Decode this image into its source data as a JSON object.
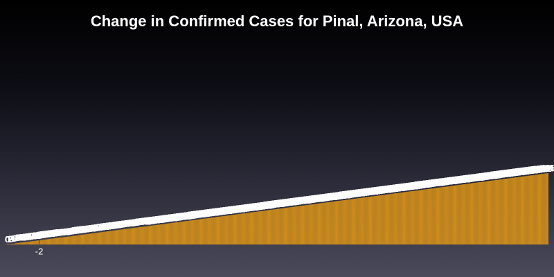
{
  "chart_data": {
    "type": "bar",
    "title": "Change in Confirmed Cases for Pinal, Arizona, USA",
    "xlabel": "",
    "ylabel": "",
    "ylim": [
      -35,
      1050
    ],
    "bar_color": "#d4901a",
    "grid": false,
    "legend": "none",
    "values": [
      0,
      0,
      1,
      1,
      2,
      2,
      3,
      3,
      4,
      4,
      5,
      5,
      6,
      7,
      7,
      8,
      9,
      9,
      10,
      10,
      11,
      11,
      11,
      12,
      12,
      12,
      13,
      13,
      14,
      14,
      15,
      15,
      16,
      16,
      17,
      17,
      18,
      18,
      19,
      19,
      20,
      20,
      21,
      21,
      22,
      22,
      23,
      23,
      -2,
      24,
      24,
      25,
      26,
      26,
      27,
      27,
      28,
      28,
      29,
      29,
      30,
      30,
      31,
      31,
      32,
      32,
      33,
      33,
      34,
      34,
      35,
      35,
      36,
      36,
      37,
      37,
      38,
      38,
      39,
      39,
      40,
      40,
      40,
      41,
      41,
      41,
      42,
      42,
      43,
      43,
      44,
      44,
      45,
      45,
      46,
      46,
      47,
      47,
      48,
      48,
      49,
      49,
      50,
      50,
      51,
      51,
      52,
      53,
      53,
      54,
      54,
      55,
      55,
      56,
      56,
      57,
      57,
      58,
      58,
      59,
      59,
      60,
      60,
      61,
      61,
      62,
      62,
      63,
      63,
      64,
      64,
      65,
      65,
      66,
      66,
      67,
      67,
      68,
      68,
      69,
      69,
      70,
      70,
      71,
      71,
      72,
      72,
      73,
      73,
      74,
      74,
      75,
      75,
      76,
      76,
      77,
      77,
      78,
      78,
      79,
      79,
      80,
      80,
      81,
      81,
      82,
      82,
      83,
      83,
      84,
      84,
      85,
      85,
      86,
      86,
      87,
      87,
      88,
      88,
      89,
      89,
      90,
      90,
      91,
      91,
      92,
      92,
      93,
      93,
      94,
      94,
      95,
      95,
      96,
      96,
      97,
      97,
      98,
      98,
      99,
      99,
      100,
      100,
      100,
      101,
      101,
      102,
      102,
      103,
      103,
      104,
      104,
      105,
      105,
      106,
      106,
      107,
      107,
      108,
      108,
      109,
      109,
      110,
      110,
      111,
      111,
      112,
      112,
      113,
      113,
      114,
      114,
      115,
      115,
      116,
      116,
      117,
      117,
      118,
      118,
      119,
      119,
      120,
      120,
      121,
      121,
      122,
      122,
      123,
      123,
      124,
      124,
      125,
      125,
      126,
      126,
      127,
      127,
      128,
      128,
      129,
      129,
      130,
      130,
      131,
      131,
      132,
      132,
      133,
      133,
      134,
      134,
      135,
      135,
      136,
      136,
      137,
      137,
      138,
      138,
      139,
      139,
      140,
      140,
      141,
      141,
      142,
      142,
      143,
      143,
      144,
      144,
      145,
      145,
      146,
      146,
      147,
      147,
      148,
      148,
      149,
      149,
      150,
      150,
      151,
      151,
      152,
      152,
      153,
      153,
      154,
      154,
      155,
      155,
      156,
      156,
      157,
      157,
      158,
      158,
      159,
      159,
      160,
      160,
      161,
      161,
      162,
      162,
      163,
      163,
      164,
      164,
      165,
      165,
      166,
      166,
      167,
      167,
      168,
      168,
      169,
      169,
      170,
      170,
      171,
      171,
      172,
      172,
      173,
      173,
      174,
      174,
      175,
      175,
      176,
      176,
      177,
      177,
      178,
      178,
      179,
      179,
      180,
      180,
      181,
      181,
      182,
      182,
      183,
      183,
      184,
      184,
      185,
      185,
      186,
      186,
      187,
      187,
      188,
      188,
      189,
      189,
      190,
      190,
      191,
      191,
      192,
      192,
      193,
      193,
      194,
      194,
      195,
      195,
      196,
      196,
      197,
      197,
      198,
      198,
      199,
      199,
      200,
      200,
      201,
      201,
      202,
      202,
      203,
      203,
      204,
      204,
      205,
      205,
      206,
      206,
      207,
      207,
      208,
      208,
      209,
      209,
      210,
      210,
      211,
      211,
      212,
      212,
      213,
      213,
      214,
      214,
      215,
      215,
      216,
      216,
      217,
      217,
      218,
      218,
      219,
      219,
      220,
      220,
      221,
      221,
      222,
      222,
      223,
      223,
      224,
      224,
      225,
      225,
      226,
      226,
      227,
      227,
      228,
      228,
      229,
      229,
      230,
      230,
      231,
      231,
      232,
      232,
      233,
      233,
      234,
      234,
      235,
      235,
      236,
      236,
      237,
      237,
      238,
      238,
      239,
      239,
      240,
      240,
      241,
      241,
      242,
      242,
      243,
      243,
      244,
      244,
      245,
      245,
      246,
      246,
      247,
      247,
      248,
      248,
      249,
      249,
      250,
      250,
      251,
      251,
      252,
      252,
      253,
      253,
      254,
      254,
      255,
      255,
      256,
      256,
      257,
      257,
      258,
      258,
      259,
      259,
      260,
      260,
      261,
      261,
      262,
      262,
      263,
      263,
      264,
      264,
      265,
      265,
      266,
      266,
      267,
      267,
      268,
      268,
      269,
      269,
      270,
      270,
      271,
      271,
      272,
      272,
      273,
      273,
      274,
      274,
      275,
      275,
      276,
      276,
      277,
      277,
      278,
      278,
      279,
      279,
      280,
      280,
      281,
      281,
      282,
      282,
      283,
      283,
      284,
      284,
      285,
      285,
      286,
      286,
      287,
      287,
      288,
      288,
      289,
      289,
      290,
      290,
      291,
      291,
      292,
      292,
      293,
      293,
      294,
      294,
      295,
      295,
      296,
      296,
      297,
      297,
      298,
      298,
      299,
      299,
      300,
      300,
      301,
      301,
      302,
      302,
      303,
      303,
      304,
      304,
      305,
      305,
      306,
      306,
      307,
      307,
      308,
      308,
      309,
      309,
      310,
      310,
      311,
      311,
      312,
      312,
      313,
      313,
      314,
      314,
      315,
      315,
      316,
      316,
      317,
      317,
      318,
      318,
      319,
      319,
      320,
      320,
      321,
      321,
      322,
      322,
      323,
      323,
      324,
      324,
      325,
      325,
      326,
      326,
      327,
      327,
      328,
      328,
      329,
      329,
      330,
      330,
      331,
      331,
      332,
      332,
      333,
      333,
      334,
      334,
      335,
      335,
      336,
      336,
      337,
      337,
      338,
      338,
      339,
      339,
      340,
      340,
      341,
      341,
      342,
      342,
      343,
      343,
      344,
      344,
      345,
      345,
      346,
      346,
      347,
      347,
      348,
      348,
      349,
      349,
      350,
      350,
      351,
      351,
      352,
      352,
      353,
      353,
      354,
      354,
      355,
      355,
      356,
      356,
      357,
      357,
      358,
      358,
      359,
      359,
      360,
      360,
      361,
      361,
      362,
      362,
      363,
      363,
      364,
      364,
      365,
      365,
      366,
      366,
      367,
      367,
      368,
      368,
      369,
      369,
      370,
      370,
      371,
      371,
      372,
      372,
      373,
      373,
      374,
      374,
      375,
      375,
      376,
      376,
      377,
      377,
      378,
      378,
      379,
      379,
      380,
      380,
      381,
      381,
      382,
      382,
      383,
      383,
      384,
      384,
      385,
      385,
      386,
      386,
      387,
      387,
      388,
      388,
      389,
      389,
      390,
      390,
      391,
      391,
      392,
      392,
      393,
      393,
      394,
      394,
      395,
      395,
      396,
      396,
      397,
      397,
      398,
      398,
      399,
      399,
      400,
      400,
      401,
      401,
      402,
      402,
      403,
      403,
      404,
      404,
      405,
      405
    ]
  }
}
